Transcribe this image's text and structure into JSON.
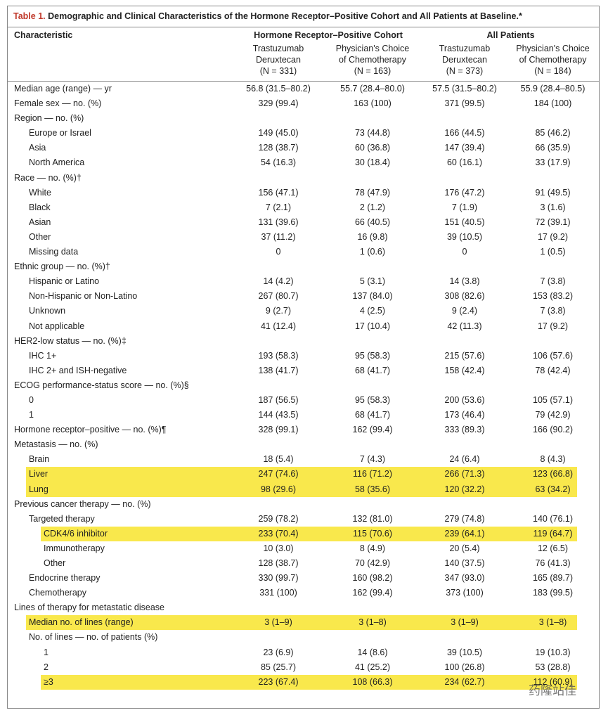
{
  "title": {
    "label": "Table 1.",
    "text": "Demographic and Clinical Characteristics of the Hormone Receptor–Positive Cohort and All Patients at Baseline.*"
  },
  "header": {
    "characteristic": "Characteristic",
    "groups": [
      "Hormone Receptor–Positive Cohort",
      "All Patients"
    ],
    "columns": [
      [
        "Trastuzumab",
        "Deruxtecan",
        "(N = 331)"
      ],
      [
        "Physician's Choice",
        "of Chemotherapy",
        "(N = 163)"
      ],
      [
        "Trastuzumab",
        "Deruxtecan",
        "(N = 373)"
      ],
      [
        "Physician's Choice",
        "of Chemotherapy",
        "(N = 184)"
      ]
    ]
  },
  "rows": [
    {
      "label": "Median age (range) — yr",
      "indent": 0,
      "cells": [
        "56.8 (31.5–80.2)",
        "55.7 (28.4–80.0)",
        "57.5 (31.5–80.2)",
        "55.9 (28.4–80.5)"
      ]
    },
    {
      "label": "Female sex — no. (%)",
      "indent": 0,
      "cells": [
        "329 (99.4)",
        "163 (100)",
        "371 (99.5)",
        "184 (100)"
      ]
    },
    {
      "label": "Region — no. (%)",
      "indent": 0,
      "cells": []
    },
    {
      "label": "Europe or Israel",
      "indent": 1,
      "cells": [
        "149 (45.0)",
        "73 (44.8)",
        "166 (44.5)",
        "85 (46.2)"
      ]
    },
    {
      "label": "Asia",
      "indent": 1,
      "cells": [
        "128 (38.7)",
        "60 (36.8)",
        "147 (39.4)",
        "66 (35.9)"
      ]
    },
    {
      "label": "North America",
      "indent": 1,
      "cells": [
        "54 (16.3)",
        "30 (18.4)",
        "60 (16.1)",
        "33 (17.9)"
      ]
    },
    {
      "label": "Race — no. (%)†",
      "indent": 0,
      "cells": []
    },
    {
      "label": "White",
      "indent": 1,
      "cells": [
        "156 (47.1)",
        "78 (47.9)",
        "176 (47.2)",
        "91 (49.5)"
      ]
    },
    {
      "label": "Black",
      "indent": 1,
      "cells": [
        "7 (2.1)",
        "2 (1.2)",
        "7 (1.9)",
        "3 (1.6)"
      ]
    },
    {
      "label": "Asian",
      "indent": 1,
      "cells": [
        "131 (39.6)",
        "66 (40.5)",
        "151 (40.5)",
        "72 (39.1)"
      ]
    },
    {
      "label": "Other",
      "indent": 1,
      "cells": [
        "37 (11.2)",
        "16 (9.8)",
        "39 (10.5)",
        "17 (9.2)"
      ]
    },
    {
      "label": "Missing data",
      "indent": 1,
      "cells": [
        "0",
        "1 (0.6)",
        "0",
        "1 (0.5)"
      ]
    },
    {
      "label": "Ethnic group — no. (%)†",
      "indent": 0,
      "cells": []
    },
    {
      "label": "Hispanic or Latino",
      "indent": 1,
      "cells": [
        "14 (4.2)",
        "5 (3.1)",
        "14 (3.8)",
        "7 (3.8)"
      ]
    },
    {
      "label": "Non-Hispanic or Non-Latino",
      "indent": 1,
      "cells": [
        "267 (80.7)",
        "137 (84.0)",
        "308 (82.6)",
        "153 (83.2)"
      ]
    },
    {
      "label": "Unknown",
      "indent": 1,
      "cells": [
        "9 (2.7)",
        "4 (2.5)",
        "9 (2.4)",
        "7 (3.8)"
      ]
    },
    {
      "label": "Not applicable",
      "indent": 1,
      "cells": [
        "41 (12.4)",
        "17 (10.4)",
        "42 (11.3)",
        "17 (9.2)"
      ]
    },
    {
      "label": "HER2-low status — no. (%)‡",
      "indent": 0,
      "cells": []
    },
    {
      "label": "IHC 1+",
      "indent": 1,
      "cells": [
        "193 (58.3)",
        "95 (58.3)",
        "215 (57.6)",
        "106 (57.6)"
      ]
    },
    {
      "label": "IHC 2+ and ISH-negative",
      "indent": 1,
      "cells": [
        "138 (41.7)",
        "68 (41.7)",
        "158 (42.4)",
        "78 (42.4)"
      ]
    },
    {
      "label": "ECOG performance-status score — no. (%)§",
      "indent": 0,
      "cells": []
    },
    {
      "label": "0",
      "indent": 1,
      "cells": [
        "187 (56.5)",
        "95 (58.3)",
        "200 (53.6)",
        "105 (57.1)"
      ]
    },
    {
      "label": "1",
      "indent": 1,
      "cells": [
        "144 (43.5)",
        "68 (41.7)",
        "173 (46.4)",
        "79 (42.9)"
      ]
    },
    {
      "label": "Hormone receptor–positive — no. (%)¶",
      "indent": 0,
      "cells": [
        "328 (99.1)",
        "162 (99.4)",
        "333 (89.3)",
        "166 (90.2)"
      ]
    },
    {
      "label": "Metastasis — no. (%)",
      "indent": 0,
      "cells": []
    },
    {
      "label": "Brain",
      "indent": 1,
      "cells": [
        "18 (5.4)",
        "7 (4.3)",
        "24 (6.4)",
        "8 (4.3)"
      ]
    },
    {
      "label": "Liver",
      "indent": 1,
      "highlight": true,
      "cells": [
        "247 (74.6)",
        "116 (71.2)",
        "266 (71.3)",
        "123 (66.8)"
      ]
    },
    {
      "label": "Lung",
      "indent": 1,
      "highlight": true,
      "cells": [
        "98 (29.6)",
        "58 (35.6)",
        "120 (32.2)",
        "63 (34.2)"
      ]
    },
    {
      "label": "Previous cancer therapy — no. (%)",
      "indent": 0,
      "cells": []
    },
    {
      "label": "Targeted therapy",
      "indent": 1,
      "cells": [
        "259 (78.2)",
        "132 (81.0)",
        "279 (74.8)",
        "140 (76.1)"
      ]
    },
    {
      "label": "CDK4/6 inhibitor",
      "indent": 2,
      "highlight": true,
      "cells": [
        "233 (70.4)",
        "115 (70.6)",
        "239 (64.1)",
        "119 (64.7)"
      ]
    },
    {
      "label": "Immunotherapy",
      "indent": 2,
      "cells": [
        "10 (3.0)",
        "8 (4.9)",
        "20 (5.4)",
        "12 (6.5)"
      ]
    },
    {
      "label": "Other",
      "indent": 2,
      "cells": [
        "128 (38.7)",
        "70 (42.9)",
        "140 (37.5)",
        "76 (41.3)"
      ]
    },
    {
      "label": "Endocrine therapy",
      "indent": 1,
      "cells": [
        "330 (99.7)",
        "160 (98.2)",
        "347 (93.0)",
        "165 (89.7)"
      ]
    },
    {
      "label": "Chemotherapy",
      "indent": 1,
      "cells": [
        "331 (100)",
        "162 (99.4)",
        "373 (100)",
        "183 (99.5)"
      ]
    },
    {
      "label": "Lines of therapy for metastatic disease",
      "indent": 0,
      "cells": []
    },
    {
      "label": "Median no. of lines (range)",
      "indent": 1,
      "highlight": true,
      "cells": [
        "3 (1–9)",
        "3 (1–8)",
        "3 (1–9)",
        "3 (1–8)"
      ]
    },
    {
      "label": "No. of lines — no. of patients (%)",
      "indent": 1,
      "cells": []
    },
    {
      "label": "1",
      "indent": 2,
      "cells": [
        "23 (6.9)",
        "14 (8.6)",
        "39 (10.5)",
        "19 (10.3)"
      ]
    },
    {
      "label": "2",
      "indent": 2,
      "cells": [
        "85 (25.7)",
        "41 (25.2)",
        "100 (26.8)",
        "53 (28.8)"
      ]
    },
    {
      "label": "≥3",
      "indent": 2,
      "highlight": true,
      "cells": [
        "223 (67.4)",
        "108 (66.3)",
        "234 (62.7)",
        "112 (60.9)"
      ]
    }
  ],
  "watermark": "药隆站佳"
}
